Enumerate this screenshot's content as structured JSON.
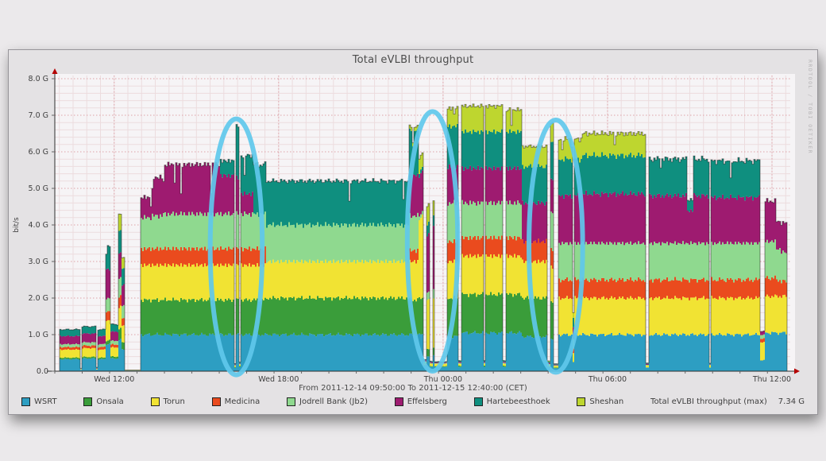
{
  "page": {
    "background": "#ebe9eb"
  },
  "panel": {
    "background": "#e4e2e4",
    "border": "#97959a",
    "credit": "RRDTOOL / TOBI OETIKER"
  },
  "chart_data": {
    "type": "area",
    "stacked": true,
    "title": "Total eVLBI throughput",
    "ylabel": "bit/s",
    "unit": "G",
    "ylim": [
      0,
      8
    ],
    "hours_total": 26.8333,
    "grid": {
      "minor_h_step_g": 0.2,
      "minor_v_step_h": 0.5,
      "major_h_step_g": 1.0,
      "major_v_step_h": 6.0
    },
    "y_ticks": [
      {
        "g": 0,
        "label": "0.0"
      },
      {
        "g": 1,
        "label": "1.0 G"
      },
      {
        "g": 2,
        "label": "2.0 G"
      },
      {
        "g": 3,
        "label": "3.0 G"
      },
      {
        "g": 4,
        "label": "4.0 G"
      },
      {
        "g": 5,
        "label": "5.0 G"
      },
      {
        "g": 6,
        "label": "6.0 G"
      },
      {
        "g": 7,
        "label": "7.0 G"
      },
      {
        "g": 8,
        "label": "8.0 G"
      }
    ],
    "x_ticks": [
      {
        "t": 2.1667,
        "label": "Wed 12:00"
      },
      {
        "t": 8.1667,
        "label": "Wed 18:00"
      },
      {
        "t": 14.1667,
        "label": "Thu 00:00"
      },
      {
        "t": 20.1667,
        "label": "Thu 06:00"
      },
      {
        "t": 26.1667,
        "label": "Thu 12:00"
      }
    ],
    "range_label": "From 2011-12-14 09:50:00 To 2011-12-15 12:40:00 (CET)",
    "max_label": "Total eVLBI throughput (max)",
    "max_value": "7.34 G",
    "style": {
      "plot_bg": "#f6f4f6",
      "grid_minor": "#ecdcde",
      "grid_major": "#dda2a8",
      "axis": "#2e2e2e",
      "arrow": "#b50000",
      "top_outline": "#1c1c1c",
      "tick_text": "#3f3f3f",
      "annotation": "#5fc8ec"
    },
    "series": [
      {
        "name": "WSRT",
        "color": "#2d9ec2"
      },
      {
        "name": "Onsala",
        "color": "#3a9d3a"
      },
      {
        "name": "Torun",
        "color": "#f1e333"
      },
      {
        "name": "Medicina",
        "color": "#ea4b1e"
      },
      {
        "name": "Jodrell Bank (Jb2)",
        "color": "#8fd98f"
      },
      {
        "name": "Effelsberg",
        "color": "#9e1b70"
      },
      {
        "name": "Hartebeesthoek",
        "color": "#0f8f7f"
      },
      {
        "name": "Sheshan",
        "color": "#bed62f"
      }
    ],
    "segments": [
      [
        0.0,
        0.12,
        [
          0,
          0,
          0,
          0,
          0,
          0,
          0,
          0
        ]
      ],
      [
        0.12,
        0.9,
        [
          0.33,
          0.04,
          0.22,
          0.07,
          0.08,
          0.22,
          0.18,
          0
        ]
      ],
      [
        0.9,
        0.98,
        [
          0.04,
          0,
          0.02,
          0,
          0,
          0.01,
          0.01,
          0
        ]
      ],
      [
        0.98,
        1.45,
        [
          0.35,
          0.04,
          0.24,
          0.07,
          0.09,
          0.24,
          0.19,
          0
        ]
      ],
      [
        1.45,
        1.52,
        [
          0.05,
          0,
          0.02,
          0,
          0,
          0.02,
          0.02,
          0
        ]
      ],
      [
        1.52,
        1.85,
        [
          0.33,
          0.04,
          0.22,
          0.07,
          0.08,
          0.22,
          0.18,
          0
        ]
      ],
      [
        1.85,
        2.0,
        [
          0.75,
          0.1,
          0.55,
          0.25,
          0.35,
          0.8,
          0.65,
          0
        ]
      ],
      [
        2.0,
        2.28,
        [
          0.35,
          0.05,
          0.25,
          0.08,
          0.1,
          0.25,
          0.2,
          0
        ]
      ],
      [
        2.28,
        2.42,
        [
          0.85,
          0.3,
          0.6,
          0.28,
          0.5,
          0.7,
          0.6,
          0.45
        ]
      ],
      [
        2.42,
        2.52,
        [
          0.6,
          0.2,
          0.45,
          0.2,
          0.35,
          0.55,
          0.45,
          0.3
        ]
      ],
      [
        2.52,
        3.1,
        [
          0.02,
          0,
          0.01,
          0,
          0,
          0,
          0,
          0
        ]
      ],
      [
        3.1,
        3.5,
        [
          1.0,
          0.95,
          0.95,
          0.45,
          0.85,
          0.55,
          0,
          0
        ]
      ],
      [
        3.5,
        3.9,
        [
          1.0,
          0.95,
          0.95,
          0.45,
          0.9,
          1.05,
          0,
          0
        ]
      ],
      [
        3.9,
        6.0,
        [
          1.0,
          0.95,
          0.95,
          0.45,
          0.95,
          1.35,
          0,
          0
        ]
      ],
      [
        6.0,
        6.5,
        [
          1.0,
          0.95,
          0.95,
          0.45,
          0.95,
          1.05,
          0.4,
          0
        ]
      ],
      [
        6.5,
        6.56,
        [
          0.1,
          0.02,
          0.03,
          0,
          0.02,
          0.02,
          0.02,
          0
        ]
      ],
      [
        6.56,
        6.68,
        [
          1.0,
          0.95,
          0.95,
          0.45,
          0.95,
          1.0,
          1.4,
          0
        ]
      ],
      [
        6.68,
        6.74,
        [
          0.12,
          0.02,
          0.04,
          0,
          0.02,
          0.02,
          0.03,
          0
        ]
      ],
      [
        6.74,
        7.2,
        [
          1.0,
          0.95,
          0.95,
          0.45,
          0.95,
          0.55,
          1.05,
          0
        ]
      ],
      [
        7.2,
        7.7,
        [
          1.0,
          0.95,
          0.95,
          0.45,
          0.95,
          0,
          1.35,
          0
        ]
      ],
      [
        7.7,
        12.9,
        [
          1.0,
          1.0,
          1.0,
          0,
          1.0,
          0,
          1.2,
          0
        ]
      ],
      [
        12.9,
        13.22,
        [
          1.0,
          0.95,
          1.05,
          0.3,
          0.95,
          1.1,
          1.25,
          0.1
        ]
      ],
      [
        13.22,
        13.42,
        [
          1.0,
          1.0,
          2.2,
          0,
          0.1,
          1.1,
          0.1,
          0.4
        ]
      ],
      [
        13.42,
        13.55,
        [
          0.15,
          0.02,
          0.08,
          0,
          0.02,
          0.03,
          0.02,
          0
        ]
      ],
      [
        13.55,
        13.62,
        [
          0.4,
          0.2,
          1.4,
          0,
          0.2,
          1.6,
          0.3,
          0.5
        ]
      ],
      [
        13.62,
        13.75,
        [
          0.12,
          0.02,
          0.06,
          0,
          0.02,
          0.03,
          0.02,
          0
        ]
      ],
      [
        13.75,
        13.82,
        [
          0.45,
          0.2,
          1.3,
          0,
          0.25,
          1.7,
          0.3,
          0.4
        ]
      ],
      [
        13.82,
        14.3,
        [
          0.12,
          0.02,
          0.06,
          0,
          0.02,
          0.02,
          0.02,
          0
        ]
      ],
      [
        14.3,
        14.68,
        [
          0.95,
          1.05,
          1.0,
          0.55,
          1.05,
          1.0,
          1.1,
          0.5
        ]
      ],
      [
        14.68,
        14.78,
        [
          0.12,
          0.03,
          0.05,
          0,
          0.03,
          0.03,
          0.03,
          0
        ]
      ],
      [
        14.78,
        15.6,
        [
          1.05,
          1.05,
          1.05,
          0.5,
          0.95,
          0.95,
          1.0,
          0.7
        ]
      ],
      [
        15.6,
        15.68,
        [
          0.12,
          0.03,
          0.05,
          0,
          0.03,
          0.03,
          0.03,
          0
        ]
      ],
      [
        15.68,
        16.33,
        [
          1.05,
          1.05,
          1.05,
          0.5,
          0.95,
          0.95,
          1.0,
          0.7
        ]
      ],
      [
        16.33,
        16.43,
        [
          0.12,
          0.03,
          0.05,
          0,
          0.03,
          0.03,
          0.03,
          0
        ]
      ],
      [
        16.43,
        17.0,
        [
          1.05,
          1.05,
          1.05,
          0.5,
          0.95,
          0.95,
          1.0,
          0.6
        ]
      ],
      [
        17.0,
        17.95,
        [
          0.95,
          1.05,
          1.0,
          0.55,
          0,
          1.05,
          1.0,
          0.55
        ]
      ],
      [
        17.95,
        18.08,
        [
          0.1,
          0.02,
          0.05,
          0,
          0.03,
          0.03,
          0.03,
          0.02
        ]
      ],
      [
        18.08,
        18.16,
        [
          0.9,
          1.0,
          0.95,
          0.5,
          1.0,
          0.9,
          1.05,
          0.5
        ]
      ],
      [
        18.16,
        18.32,
        [
          0.08,
          0.02,
          0.04,
          0,
          0.02,
          0.02,
          0.02,
          0
        ]
      ],
      [
        18.32,
        19.2,
        [
          1.0,
          0,
          1.0,
          0.5,
          1.0,
          1.3,
          1.0,
          0.55
        ]
      ],
      [
        19.2,
        21.55,
        [
          1.0,
          0,
          1.0,
          0.5,
          1.0,
          1.35,
          1.05,
          0.6
        ]
      ],
      [
        21.55,
        21.64,
        [
          0.1,
          0,
          0.05,
          0,
          0.02,
          0.03,
          0.02,
          0
        ]
      ],
      [
        21.64,
        23.05,
        [
          1.0,
          0,
          1.0,
          0.5,
          1.0,
          1.3,
          1.0,
          0
        ]
      ],
      [
        23.05,
        23.28,
        [
          1.0,
          0,
          1.0,
          0.5,
          1.0,
          0.9,
          0.3,
          0
        ]
      ],
      [
        23.28,
        23.85,
        [
          1.0,
          0,
          1.0,
          0.5,
          1.0,
          1.3,
          1.0,
          0
        ]
      ],
      [
        23.85,
        23.93,
        [
          0.1,
          0,
          0.06,
          0,
          0.02,
          0.02,
          0.02,
          0
        ]
      ],
      [
        23.93,
        25.7,
        [
          1.0,
          0,
          1.0,
          0.5,
          1.0,
          1.25,
          1.0,
          0
        ]
      ],
      [
        25.7,
        25.9,
        [
          0.3,
          0,
          0.5,
          0.1,
          0.1,
          0.1,
          0,
          0
        ]
      ],
      [
        25.9,
        26.28,
        [
          1.05,
          0,
          1.0,
          0.5,
          1.0,
          1.1,
          0,
          0
        ]
      ],
      [
        26.28,
        26.48,
        [
          1.05,
          0,
          1.0,
          0.45,
          0.85,
          0.75,
          0,
          0
        ]
      ],
      [
        26.48,
        26.7,
        [
          1.05,
          0,
          1.0,
          0.4,
          0.8,
          0.8,
          0,
          0
        ]
      ],
      [
        26.7,
        26.83,
        [
          0,
          0,
          0,
          0,
          0,
          0,
          0,
          0
        ]
      ]
    ],
    "annotations": [
      {
        "type": "ellipse",
        "t": 6.62,
        "g": 3.4,
        "rt": 0.95,
        "rg": 3.5
      },
      {
        "type": "ellipse",
        "t": 13.78,
        "g": 3.55,
        "rt": 0.92,
        "rg": 3.55
      },
      {
        "type": "ellipse",
        "t": 18.28,
        "g": 3.42,
        "rt": 0.98,
        "rg": 3.45
      }
    ]
  }
}
